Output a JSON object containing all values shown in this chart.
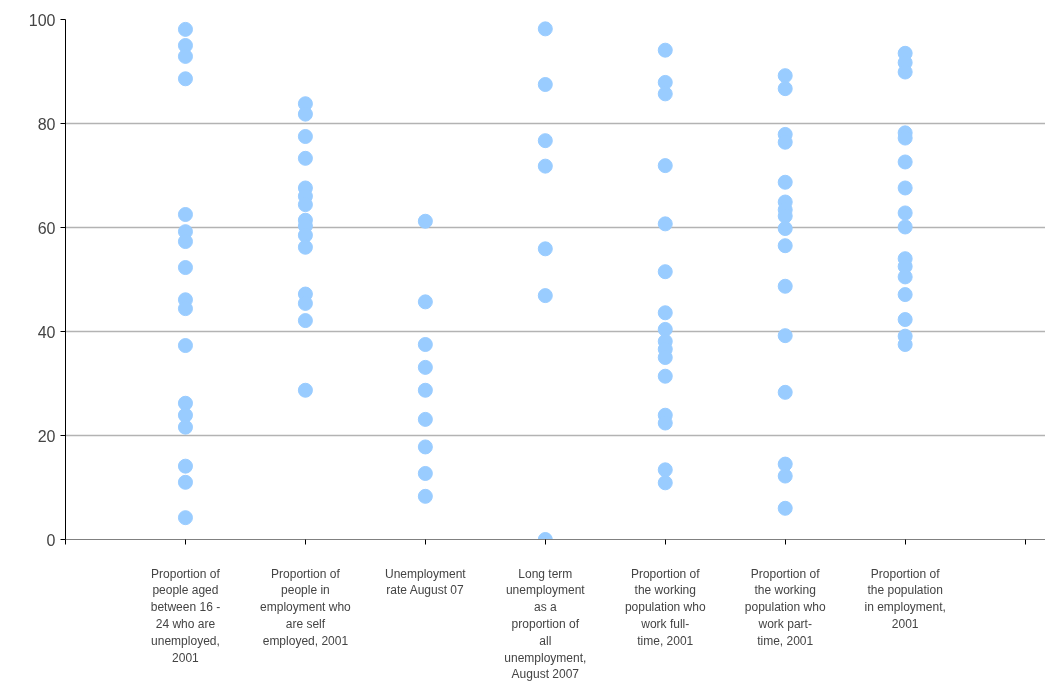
{
  "chart_data": {
    "type": "scatter",
    "categories": [
      "Proportion of people aged between 16 - 24 who are unemployed, 2001",
      "Proportion of people in employment who are self employed, 2001",
      "Unemployment rate August 07",
      "Long term unemployment as a proportion of all unemployment, August 2007",
      "Proportion of the working population who work full-time, 2001",
      "Proportion of the working population who work part-time, 2001",
      "Proportion of the population in employment, 2001"
    ],
    "ylim": [
      0,
      100
    ],
    "yticks": [
      0,
      20,
      40,
      60,
      80,
      100
    ],
    "grid": "y",
    "marker": "circle",
    "series": [
      {
        "color": "#99ccff",
        "x": [
          "Proportion of people aged between 16 - 24 who are unemployed, 2001",
          "Proportion of people aged between 16 - 24 who are unemployed, 2001",
          "Proportion of people aged between 16 - 24 who are unemployed, 2001",
          "Proportion of people aged between 16 - 24 who are unemployed, 2001",
          "Proportion of people aged between 16 - 24 who are unemployed, 2001",
          "Proportion of people aged between 16 - 24 who are unemployed, 2001",
          "Proportion of people aged between 16 - 24 who are unemployed, 2001",
          "Proportion of people aged between 16 - 24 who are unemployed, 2001",
          "Proportion of people aged between 16 - 24 who are unemployed, 2001",
          "Proportion of people aged between 16 - 24 who are unemployed, 2001",
          "Proportion of people aged between 16 - 24 who are unemployed, 2001",
          "Proportion of people aged between 16 - 24 who are unemployed, 2001",
          "Proportion of people aged between 16 - 24 who are unemployed, 2001",
          "Proportion of people aged between 16 - 24 who are unemployed, 2001",
          "Proportion of people aged between 16 - 24 who are unemployed, 2001",
          "Proportion of people aged between 16 - 24 who are unemployed, 2001",
          "Proportion of people aged between 16 - 24 who are unemployed, 2001"
        ],
        "values": [
          98.1,
          95.0,
          92.9,
          88.6,
          62.5,
          59.2,
          57.3,
          52.3,
          46.1,
          44.4,
          37.3,
          26.2,
          23.9,
          21.6,
          14.1,
          11.0,
          4.2
        ]
      },
      {
        "color": "#99ccff",
        "x": [
          "Proportion of people in employment who are self employed, 2001",
          "Proportion of people in employment who are self employed, 2001",
          "Proportion of people in employment who are self employed, 2001",
          "Proportion of people in employment who are self employed, 2001",
          "Proportion of people in employment who are self employed, 2001",
          "Proportion of people in employment who are self employed, 2001",
          "Proportion of people in employment who are self employed, 2001",
          "Proportion of people in employment who are self employed, 2001",
          "Proportion of people in employment who are self employed, 2001",
          "Proportion of people in employment who are self employed, 2001",
          "Proportion of people in employment who are self employed, 2001",
          "Proportion of people in employment who are self employed, 2001",
          "Proportion of people in employment who are self employed, 2001",
          "Proportion of people in employment who are self employed, 2001",
          "Proportion of people in employment who are self employed, 2001"
        ],
        "values": [
          83.8,
          81.8,
          77.5,
          73.3,
          67.6,
          66.0,
          64.4,
          61.4,
          60.3,
          58.5,
          56.2,
          47.2,
          45.4,
          42.1,
          28.7
        ]
      },
      {
        "color": "#99ccff",
        "x": [
          "Unemployment rate August 07",
          "Unemployment rate August 07",
          "Unemployment rate August 07",
          "Unemployment rate August 07",
          "Unemployment rate August 07",
          "Unemployment rate August 07",
          "Unemployment rate August 07",
          "Unemployment rate August 07",
          "Unemployment rate August 07"
        ],
        "values": [
          61.2,
          45.7,
          37.5,
          33.1,
          28.7,
          23.1,
          17.8,
          12.7,
          8.3
        ]
      },
      {
        "color": "#99ccff",
        "x": [
          "Long term unemployment as a proportion of all unemployment, August 2007",
          "Long term unemployment as a proportion of all unemployment, August 2007",
          "Long term unemployment as a proportion of all unemployment, August 2007",
          "Long term unemployment as a proportion of all unemployment, August 2007",
          "Long term unemployment as a proportion of all unemployment, August 2007",
          "Long term unemployment as a proportion of all unemployment, August 2007",
          "Long term unemployment as a proportion of all unemployment, August 2007"
        ],
        "values": [
          98.2,
          87.5,
          76.7,
          71.8,
          55.9,
          46.9,
          0
        ]
      },
      {
        "color": "#99ccff",
        "x": [
          "Proportion of the working population who work full-time, 2001",
          "Proportion of the working population who work full-time, 2001",
          "Proportion of the working population who work full-time, 2001",
          "Proportion of the working population who work full-time, 2001",
          "Proportion of the working population who work full-time, 2001",
          "Proportion of the working population who work full-time, 2001",
          "Proportion of the working population who work full-time, 2001",
          "Proportion of the working population who work full-time, 2001",
          "Proportion of the working population who work full-time, 2001",
          "Proportion of the working population who work full-time, 2001",
          "Proportion of the working population who work full-time, 2001",
          "Proportion of the working population who work full-time, 2001",
          "Proportion of the working population who work full-time, 2001",
          "Proportion of the working population who work full-time, 2001",
          "Proportion of the working population who work full-time, 2001",
          "Proportion of the working population who work full-time, 2001"
        ],
        "values": [
          94.1,
          87.9,
          85.7,
          71.9,
          60.7,
          51.5,
          43.6,
          40.4,
          38.1,
          36.6,
          35.0,
          31.4,
          23.9,
          22.4,
          13.4,
          10.9
        ]
      },
      {
        "color": "#99ccff",
        "x": [
          "Proportion of the working population who work part-time, 2001",
          "Proportion of the working population who work part-time, 2001",
          "Proportion of the working population who work part-time, 2001",
          "Proportion of the working population who work part-time, 2001",
          "Proportion of the working population who work part-time, 2001",
          "Proportion of the working population who work part-time, 2001",
          "Proportion of the working population who work part-time, 2001",
          "Proportion of the working population who work part-time, 2001",
          "Proportion of the working population who work part-time, 2001",
          "Proportion of the working population who work part-time, 2001",
          "Proportion of the working population who work part-time, 2001",
          "Proportion of the working population who work part-time, 2001",
          "Proportion of the working population who work part-time, 2001",
          "Proportion of the working population who work part-time, 2001",
          "Proportion of the working population who work part-time, 2001",
          "Proportion of the working population who work part-time, 2001"
        ],
        "values": [
          89.2,
          86.7,
          77.9,
          76.4,
          68.7,
          64.9,
          63.4,
          62.2,
          59.8,
          56.5,
          48.7,
          39.2,
          28.3,
          14.5,
          12.2,
          6.0
        ]
      },
      {
        "color": "#99ccff",
        "x": [
          "Proportion of the population in employment, 2001",
          "Proportion of the population in employment, 2001",
          "Proportion of the population in employment, 2001",
          "Proportion of the population in employment, 2001",
          "Proportion of the population in employment, 2001",
          "Proportion of the population in employment, 2001",
          "Proportion of the population in employment, 2001",
          "Proportion of the population in employment, 2001",
          "Proportion of the population in employment, 2001",
          "Proportion of the population in employment, 2001",
          "Proportion of the population in employment, 2001",
          "Proportion of the population in employment, 2001",
          "Proportion of the population in employment, 2001",
          "Proportion of the population in employment, 2001",
          "Proportion of the population in employment, 2001",
          "Proportion of the population in employment, 2001"
        ],
        "values": [
          93.5,
          91.7,
          89.9,
          78.2,
          77.2,
          72.6,
          67.6,
          62.8,
          60.1,
          54.0,
          52.5,
          50.5,
          47.1,
          42.3,
          39.1,
          37.5
        ]
      }
    ]
  }
}
